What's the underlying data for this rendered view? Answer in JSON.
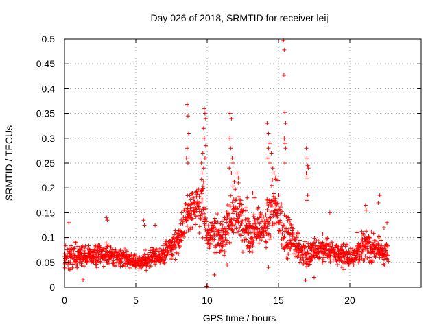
{
  "chart_data": {
    "type": "scatter",
    "title": "Day 026 of 2018, SRMTID for receiver leij",
    "xlabel": "GPS time / hours",
    "ylabel": "SRMTID / TECUs",
    "xlim": [
      0,
      25
    ],
    "ylim": [
      0,
      0.5
    ],
    "xticks": [
      0,
      5,
      10,
      15,
      20
    ],
    "xtick_labels": [
      "0",
      "5",
      "10",
      "15",
      "20"
    ],
    "yticks": [
      0,
      0.05,
      0.1,
      0.15,
      0.2,
      0.25,
      0.3,
      0.35,
      0.4,
      0.45,
      0.5
    ],
    "ytick_labels": [
      "0",
      "0.05",
      "0.1",
      "0.15",
      "0.2",
      "0.25",
      "0.3",
      "0.35",
      "0.4",
      "0.45",
      "0.5"
    ],
    "grid": true,
    "marker": "+",
    "color": "#ff0000",
    "envelope": [
      [
        0.0,
        0.035,
        0.075
      ],
      [
        0.5,
        0.045,
        0.09
      ],
      [
        1.0,
        0.045,
        0.085
      ],
      [
        2.0,
        0.045,
        0.08
      ],
      [
        3.0,
        0.045,
        0.085
      ],
      [
        4.0,
        0.045,
        0.075
      ],
      [
        5.0,
        0.035,
        0.065
      ],
      [
        6.0,
        0.04,
        0.07
      ],
      [
        7.0,
        0.05,
        0.085
      ],
      [
        7.8,
        0.065,
        0.11
      ],
      [
        8.3,
        0.09,
        0.15
      ],
      [
        8.7,
        0.12,
        0.19
      ],
      [
        9.2,
        0.13,
        0.2
      ],
      [
        9.7,
        0.1,
        0.22
      ],
      [
        10.0,
        0.07,
        0.13
      ],
      [
        10.5,
        0.08,
        0.14
      ],
      [
        11.0,
        0.06,
        0.13
      ],
      [
        11.5,
        0.07,
        0.16
      ],
      [
        12.0,
        0.1,
        0.22
      ],
      [
        12.5,
        0.08,
        0.17
      ],
      [
        13.0,
        0.07,
        0.14
      ],
      [
        13.5,
        0.09,
        0.16
      ],
      [
        14.0,
        0.08,
        0.15
      ],
      [
        14.5,
        0.1,
        0.2
      ],
      [
        15.0,
        0.1,
        0.2
      ],
      [
        15.5,
        0.06,
        0.14
      ],
      [
        16.0,
        0.07,
        0.12
      ],
      [
        16.5,
        0.05,
        0.1
      ],
      [
        17.0,
        0.04,
        0.09
      ],
      [
        18.0,
        0.05,
        0.1
      ],
      [
        19.0,
        0.05,
        0.09
      ],
      [
        20.0,
        0.04,
        0.08
      ],
      [
        21.0,
        0.06,
        0.11
      ],
      [
        22.0,
        0.05,
        0.1
      ],
      [
        22.7,
        0.04,
        0.09
      ]
    ],
    "outliers": [
      [
        8.6,
        0.368
      ],
      [
        8.65,
        0.345
      ],
      [
        8.7,
        0.31
      ],
      [
        8.6,
        0.28
      ],
      [
        8.55,
        0.26
      ],
      [
        8.65,
        0.25
      ],
      [
        9.8,
        0.36
      ],
      [
        9.85,
        0.35
      ],
      [
        9.9,
        0.34
      ],
      [
        9.75,
        0.32
      ],
      [
        9.8,
        0.3
      ],
      [
        9.9,
        0.285
      ],
      [
        9.7,
        0.27
      ],
      [
        9.85,
        0.26
      ],
      [
        9.6,
        0.25
      ],
      [
        9.75,
        0.24
      ],
      [
        9.65,
        0.23
      ],
      [
        11.6,
        0.35
      ],
      [
        11.7,
        0.34
      ],
      [
        11.6,
        0.3
      ],
      [
        11.65,
        0.28
      ],
      [
        11.75,
        0.26
      ],
      [
        11.8,
        0.25
      ],
      [
        11.55,
        0.24
      ],
      [
        11.7,
        0.23
      ],
      [
        12.1,
        0.23
      ],
      [
        12.2,
        0.22
      ],
      [
        14.2,
        0.33
      ],
      [
        14.3,
        0.31
      ],
      [
        14.4,
        0.29
      ],
      [
        14.3,
        0.28
      ],
      [
        14.5,
        0.27
      ],
      [
        14.25,
        0.26
      ],
      [
        14.4,
        0.25
      ],
      [
        14.6,
        0.24
      ],
      [
        14.7,
        0.23
      ],
      [
        14.8,
        0.22
      ],
      [
        15.35,
        0.497
      ],
      [
        15.4,
        0.478
      ],
      [
        15.38,
        0.427
      ],
      [
        15.45,
        0.352
      ],
      [
        15.5,
        0.33
      ],
      [
        15.4,
        0.3
      ],
      [
        15.45,
        0.29
      ],
      [
        15.5,
        0.28
      ],
      [
        15.45,
        0.25
      ],
      [
        16.95,
        0.28
      ],
      [
        17.0,
        0.26
      ],
      [
        17.05,
        0.245
      ],
      [
        17.1,
        0.24
      ],
      [
        16.95,
        0.23
      ],
      [
        17.0,
        0.22
      ],
      [
        17.05,
        0.185
      ],
      [
        17.0,
        0.175
      ],
      [
        16.9,
        0.014
      ],
      [
        9.95,
        0.002
      ],
      [
        10.0,
        0.002
      ],
      [
        18.6,
        0.15
      ],
      [
        21.1,
        0.165
      ],
      [
        21.15,
        0.155
      ],
      [
        22.1,
        0.185
      ],
      [
        22.0,
        0.17
      ],
      [
        22.4,
        0.12
      ],
      [
        22.6,
        0.13
      ],
      [
        13.2,
        0.19
      ],
      [
        13.3,
        0.18
      ],
      [
        12.8,
        0.18
      ],
      [
        5.55,
        0.135
      ],
      [
        5.6,
        0.125
      ],
      [
        3.0,
        0.135
      ],
      [
        2.95,
        0.14
      ],
      [
        0.3,
        0.13
      ],
      [
        6.35,
        0.125
      ],
      [
        10.5,
        0.025
      ],
      [
        11.4,
        0.045
      ],
      [
        14.3,
        0.04
      ],
      [
        17.5,
        0.02
      ],
      [
        1.3,
        0.015
      ],
      [
        20.5,
        0.11
      ]
    ]
  }
}
